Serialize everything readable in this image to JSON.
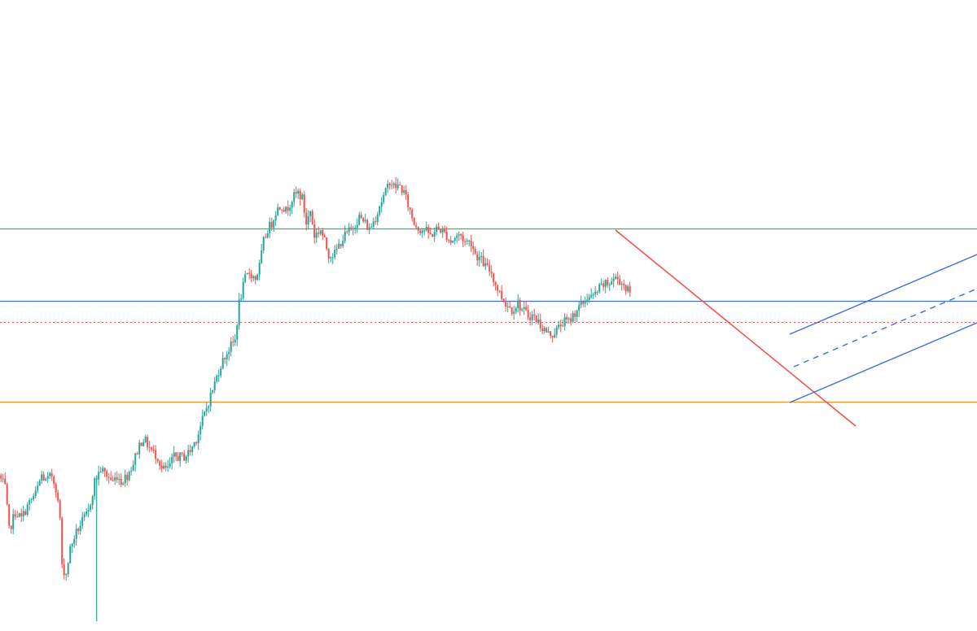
{
  "chart_data": {
    "type": "candlestick",
    "title": "",
    "xlabel": "",
    "ylabel": "",
    "grid": false,
    "legend": "none",
    "x_range": [
      0,
      480
    ],
    "y_range": [
      0,
      100
    ],
    "colors": {
      "up": "#26a69a",
      "down": "#ef5350",
      "background": "#ffffff"
    },
    "price_path": [
      [
        0,
        24
      ],
      [
        3,
        22
      ],
      [
        5,
        15
      ],
      [
        8,
        18
      ],
      [
        11,
        17
      ],
      [
        14,
        19
      ],
      [
        18,
        21
      ],
      [
        21,
        24
      ],
      [
        23,
        23
      ],
      [
        26,
        24
      ],
      [
        28,
        22
      ],
      [
        30,
        17
      ],
      [
        31,
        9
      ],
      [
        33,
        8
      ],
      [
        35,
        12
      ],
      [
        37,
        14
      ],
      [
        40,
        16
      ],
      [
        44,
        18
      ],
      [
        47,
        23
      ],
      [
        50,
        25
      ],
      [
        53,
        24
      ],
      [
        56,
        23
      ],
      [
        58,
        24
      ],
      [
        60,
        23
      ],
      [
        63,
        24
      ],
      [
        66,
        26
      ],
      [
        69,
        29
      ],
      [
        71,
        30
      ],
      [
        73,
        29
      ],
      [
        75,
        28
      ],
      [
        78,
        27
      ],
      [
        80,
        25
      ],
      [
        83,
        25
      ],
      [
        86,
        27
      ],
      [
        89,
        27
      ],
      [
        91,
        27
      ],
      [
        94,
        28
      ],
      [
        97,
        30
      ],
      [
        99,
        32
      ],
      [
        102,
        35
      ],
      [
        104,
        37
      ],
      [
        106,
        39
      ],
      [
        109,
        42
      ],
      [
        112,
        44
      ],
      [
        114,
        45
      ],
      [
        116,
        46
      ],
      [
        118,
        52
      ],
      [
        121,
        56
      ],
      [
        123,
        57
      ],
      [
        126,
        56
      ],
      [
        128,
        58
      ],
      [
        130,
        62
      ],
      [
        132,
        64
      ],
      [
        134,
        65
      ],
      [
        136,
        67
      ],
      [
        139,
        68
      ],
      [
        141,
        67
      ],
      [
        144,
        69
      ],
      [
        147,
        70
      ],
      [
        149,
        69
      ],
      [
        151,
        65
      ],
      [
        153,
        67
      ],
      [
        155,
        63
      ],
      [
        158,
        64
      ],
      [
        160,
        62
      ],
      [
        162,
        60
      ],
      [
        165,
        60
      ],
      [
        168,
        62
      ],
      [
        170,
        63
      ],
      [
        173,
        64
      ],
      [
        175,
        65
      ],
      [
        177,
        66
      ],
      [
        180,
        65
      ],
      [
        182,
        64
      ],
      [
        185,
        66
      ],
      [
        187,
        68
      ],
      [
        190,
        70
      ],
      [
        192,
        72
      ],
      [
        194,
        71
      ],
      [
        197,
        71
      ],
      [
        199,
        70
      ],
      [
        202,
        67
      ],
      [
        204,
        65
      ],
      [
        207,
        64
      ],
      [
        209,
        64
      ],
      [
        212,
        63
      ],
      [
        215,
        64
      ],
      [
        217,
        64
      ],
      [
        220,
        63
      ],
      [
        222,
        62
      ],
      [
        225,
        63
      ],
      [
        227,
        63
      ],
      [
        229,
        62
      ],
      [
        232,
        62
      ],
      [
        234,
        60
      ],
      [
        237,
        59
      ],
      [
        239,
        58
      ],
      [
        242,
        57
      ],
      [
        244,
        55
      ],
      [
        247,
        53
      ],
      [
        249,
        52
      ],
      [
        252,
        51
      ],
      [
        255,
        52
      ],
      [
        257,
        51
      ],
      [
        260,
        50
      ],
      [
        262,
        50
      ],
      [
        265,
        49
      ],
      [
        267,
        48
      ],
      [
        270,
        47
      ],
      [
        272,
        47
      ],
      [
        275,
        48
      ],
      [
        277,
        49
      ],
      [
        280,
        49
      ],
      [
        282,
        50
      ],
      [
        284,
        51
      ],
      [
        287,
        52
      ],
      [
        289,
        53
      ],
      [
        292,
        53
      ],
      [
        294,
        54
      ],
      [
        297,
        55
      ],
      [
        299,
        55
      ],
      [
        302,
        56
      ],
      [
        304,
        56
      ],
      [
        307,
        55
      ],
      [
        309,
        54
      ]
    ]
  }
}
